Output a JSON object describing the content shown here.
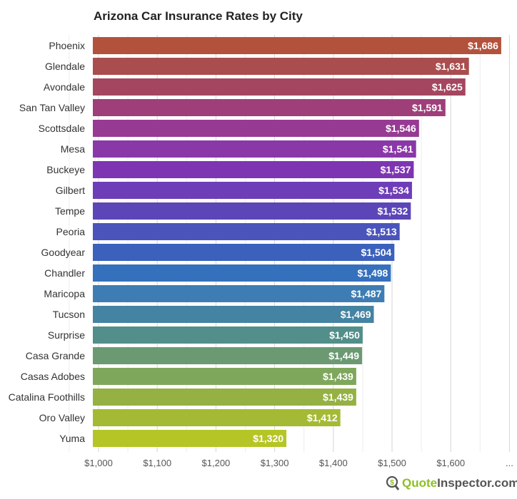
{
  "chart_data": {
    "type": "bar",
    "orientation": "horizontal",
    "title": "Arizona Car Insurance Rates by City",
    "xlabel": "",
    "ylabel": "",
    "xlim": [
      1000,
      1700
    ],
    "x_ticks": [
      "$1,000",
      "$1,100",
      "$1,200",
      "$1,300",
      "$1,400",
      "$1,500",
      "$1,600",
      "..."
    ],
    "grid": true,
    "categories": [
      "Phoenix",
      "Glendale",
      "Avondale",
      "San Tan Valley",
      "Scottsdale",
      "Mesa",
      "Buckeye",
      "Gilbert",
      "Tempe",
      "Peoria",
      "Goodyear",
      "Chandler",
      "Maricopa",
      "Tucson",
      "Surprise",
      "Casa Grande",
      "Casas Adobes",
      "Catalina Foothills",
      "Oro Valley",
      "Yuma"
    ],
    "values": [
      1686,
      1631,
      1625,
      1591,
      1546,
      1541,
      1537,
      1534,
      1532,
      1513,
      1504,
      1498,
      1487,
      1469,
      1450,
      1449,
      1439,
      1439,
      1412,
      1320
    ],
    "labels": [
      "$1,686",
      "$1,631",
      "$1,625",
      "$1,591",
      "$1,546",
      "$1,541",
      "$1,537",
      "$1,534",
      "$1,532",
      "$1,513",
      "$1,504",
      "$1,498",
      "$1,487",
      "$1,469",
      "$1,450",
      "$1,449",
      "$1,439",
      "$1,439",
      "$1,412",
      "$1,320"
    ],
    "colors": [
      "#b3523c",
      "#a94d4e",
      "#a4465f",
      "#9e3f7a",
      "#973a93",
      "#8a37a8",
      "#7d35b1",
      "#6e3db8",
      "#5c46b7",
      "#4b54bb",
      "#3c61bc",
      "#3570bd",
      "#3e7db3",
      "#4483a2",
      "#528e8a",
      "#6b9a72",
      "#7ea75b",
      "#95b144",
      "#a5ba34",
      "#b5c525"
    ]
  },
  "logo": {
    "part1": "Quote",
    "part2": "Inspector.com",
    "icon": "dollar-magnifier-icon"
  }
}
